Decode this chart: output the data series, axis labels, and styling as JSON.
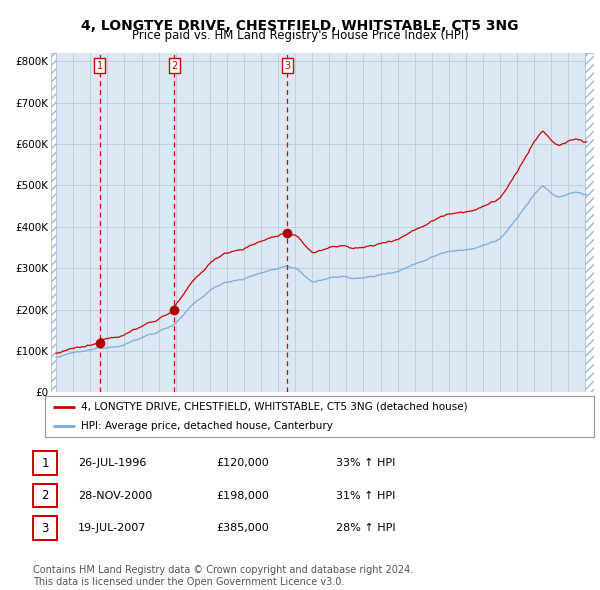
{
  "title": "4, LONGTYE DRIVE, CHESTFIELD, WHITSTABLE, CT5 3NG",
  "subtitle": "Price paid vs. HM Land Registry's House Price Index (HPI)",
  "title_fontsize": 10,
  "subtitle_fontsize": 8.5,
  "bg_color": "#dce9f5",
  "grid_color": "#b0b8c8",
  "red_line_color": "#cc0000",
  "blue_line_color": "#7aaadd",
  "marker_color": "#aa0000",
  "dashed_line_color": "#cc0000",
  "ylim": [
    0,
    820000
  ],
  "yticks": [
    0,
    100000,
    200000,
    300000,
    400000,
    500000,
    600000,
    700000,
    800000
  ],
  "ytick_labels": [
    "£0",
    "£100K",
    "£200K",
    "£300K",
    "£400K",
    "£500K",
    "£600K",
    "£700K",
    "£800K"
  ],
  "purchases": [
    {
      "label": "1",
      "date": "26-JUL-1996",
      "x_year": 1996.554,
      "price": 120000,
      "pct": "33%"
    },
    {
      "label": "2",
      "date": "28-NOV-2000",
      "x_year": 2000.909,
      "price": 198000,
      "pct": "31%"
    },
    {
      "label": "3",
      "date": "19-JUL-2007",
      "x_year": 2007.546,
      "price": 385000,
      "pct": "28%"
    }
  ],
  "legend_entries": [
    "4, LONGTYE DRIVE, CHESTFIELD, WHITSTABLE, CT5 3NG (detached house)",
    "HPI: Average price, detached house, Canterbury"
  ],
  "footer": "Contains HM Land Registry data © Crown copyright and database right 2024.\nThis data is licensed under the Open Government Licence v3.0.",
  "footer_fontsize": 7,
  "xlim_left": 1993.7,
  "xlim_right": 2025.5,
  "hatch_left_end": 1994.0,
  "hatch_right_start": 2025.0
}
